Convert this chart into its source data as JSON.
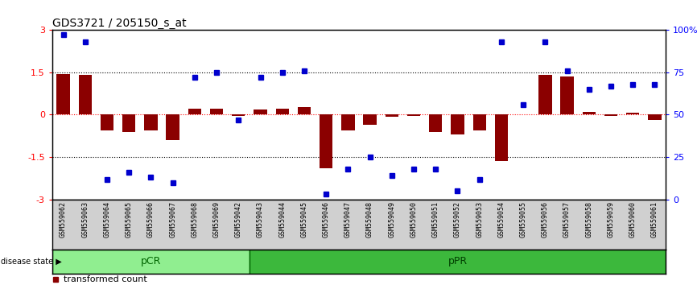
{
  "title": "GDS3721 / 205150_s_at",
  "samples": [
    "GSM559062",
    "GSM559063",
    "GSM559064",
    "GSM559065",
    "GSM559066",
    "GSM559067",
    "GSM559068",
    "GSM559069",
    "GSM559042",
    "GSM559043",
    "GSM559044",
    "GSM559045",
    "GSM559046",
    "GSM559047",
    "GSM559048",
    "GSM559049",
    "GSM559050",
    "GSM559051",
    "GSM559052",
    "GSM559053",
    "GSM559054",
    "GSM559055",
    "GSM559056",
    "GSM559057",
    "GSM559058",
    "GSM559059",
    "GSM559060",
    "GSM559061"
  ],
  "transformed_count": [
    1.45,
    1.4,
    -0.55,
    -0.6,
    -0.55,
    -0.9,
    0.2,
    0.2,
    -0.05,
    0.18,
    0.22,
    0.27,
    -1.9,
    -0.55,
    -0.35,
    -0.08,
    -0.05,
    -0.6,
    -0.7,
    -0.55,
    -1.65,
    0.0,
    1.4,
    1.35,
    0.1,
    -0.05,
    0.08,
    -0.18
  ],
  "percentile_rank": [
    97,
    93,
    12,
    16,
    13,
    10,
    72,
    75,
    47,
    72,
    75,
    76,
    3,
    18,
    25,
    14,
    18,
    18,
    5,
    12,
    93,
    56,
    93,
    76,
    65,
    67,
    68,
    68
  ],
  "pCR_count": 9,
  "pPR_count": 19,
  "bar_color": "#8B0000",
  "dot_color": "#0000CD",
  "ylim_left": [
    -3,
    3
  ],
  "ylim_right": [
    0,
    100
  ],
  "yticks_left": [
    -3,
    -1.5,
    0,
    1.5,
    3
  ],
  "ytick_labels_left": [
    "-3",
    "-1.5",
    "0",
    "1.5",
    "3"
  ],
  "yticks_right": [
    0,
    25,
    50,
    75,
    100
  ],
  "ytick_labels_right": [
    "0",
    "25",
    "50",
    "75",
    "100%"
  ],
  "bg_color_labels": "#D0D0D0",
  "pCR_color": "#90EE90",
  "pPR_color": "#3CB83C",
  "disease_state_label": "disease state"
}
